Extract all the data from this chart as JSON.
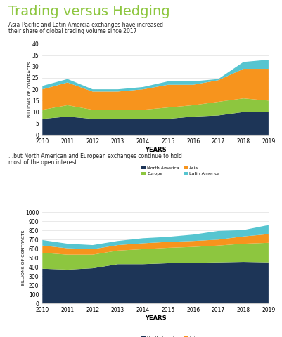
{
  "title": "Trading versus Hedging",
  "title_color": "#8dc63f",
  "subtitle1": "Asia-Pacific and Latin Amercia exchanges have increased",
  "subtitle2": "their share of global trading volume since 2017",
  "subtitle2b": "...but North American and European exchanges continue to hold",
  "subtitle2c": "most of the open interest",
  "years": [
    2010,
    2011,
    2012,
    2013,
    2014,
    2015,
    2016,
    2017,
    2018,
    2019
  ],
  "chart1": {
    "ylabel": "BILLIONS OF CONTRACTS",
    "xlabel": "YEARS",
    "ylim": [
      0,
      40
    ],
    "yticks": [
      0,
      5,
      10,
      15,
      20,
      25,
      30,
      35,
      40
    ],
    "north_america": [
      7,
      8,
      7,
      7,
      7,
      7,
      8,
      8.5,
      10,
      10
    ],
    "europe": [
      4,
      5,
      4,
      4,
      4,
      5,
      5,
      6,
      6,
      5
    ],
    "asia": [
      9,
      10,
      8,
      8,
      9,
      10,
      9,
      9.5,
      13,
      14
    ],
    "latin_america": [
      1.5,
      1.5,
      1,
      1,
      1,
      1.5,
      1.5,
      0.5,
      3,
      4
    ]
  },
  "chart2": {
    "ylabel": "BILLIONS OF CONTRACTS",
    "xlabel": "YEARS",
    "ylim": [
      0,
      1000
    ],
    "yticks": [
      0,
      100,
      200,
      300,
      400,
      500,
      600,
      700,
      800,
      900,
      1000
    ],
    "north_america": [
      380,
      370,
      385,
      430,
      430,
      440,
      445,
      450,
      455,
      450
    ],
    "europe": [
      175,
      165,
      150,
      150,
      165,
      170,
      175,
      185,
      200,
      215
    ],
    "asia": [
      80,
      70,
      60,
      60,
      65,
      65,
      65,
      65,
      80,
      95
    ],
    "latin_america": [
      60,
      50,
      45,
      45,
      55,
      55,
      70,
      95,
      70,
      100
    ]
  },
  "colors": {
    "north_america": "#1d3557",
    "europe": "#8dc63f",
    "asia": "#f7941d",
    "latin_america": "#56c5d0"
  },
  "background_color": "#ffffff"
}
